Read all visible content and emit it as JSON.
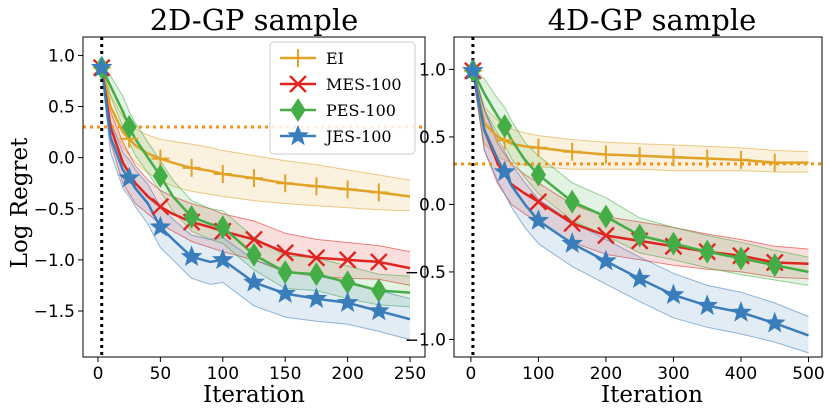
{
  "chart_data": [
    {
      "type": "line",
      "title": "2D-GP sample",
      "xlabel": "Iteration",
      "ylabel": "Log Regret",
      "xlim": [
        -12,
        262
      ],
      "ylim": [
        -1.95,
        1.18
      ],
      "xticks": [
        0,
        50,
        100,
        150,
        200,
        250
      ],
      "yticks": [
        1.0,
        0.5,
        0.0,
        -0.5,
        -1.0,
        -1.5
      ],
      "xtick_labels": [
        "0",
        "50",
        "100",
        "150",
        "200",
        "250"
      ],
      "ytick_labels": [
        "1.0",
        "0.5",
        "0.0",
        "−0.5",
        "−1.0",
        "−1.5"
      ],
      "vline_x": 3,
      "hline_y": 0.3,
      "legend": {
        "position": "top-right",
        "entries": [
          "EI",
          "MES-100",
          "PES-100",
          "JES-100"
        ]
      },
      "series": [
        {
          "name": "EI",
          "color": "#e0a326",
          "marker": "plus",
          "marker_x": [
            25,
            50,
            75,
            100,
            125,
            150,
            175,
            200,
            225
          ],
          "x": [
            3,
            10,
            20,
            30,
            40,
            50,
            60,
            75,
            90,
            100,
            125,
            150,
            175,
            200,
            225,
            250
          ],
          "mean": [
            0.88,
            0.5,
            0.25,
            0.12,
            0.04,
            -0.01,
            -0.05,
            -0.1,
            -0.13,
            -0.16,
            -0.2,
            -0.25,
            -0.28,
            -0.31,
            -0.34,
            -0.38
          ],
          "lower": [
            0.85,
            0.35,
            0.1,
            -0.05,
            -0.15,
            -0.22,
            -0.28,
            -0.33,
            -0.36,
            -0.38,
            -0.42,
            -0.45,
            -0.47,
            -0.49,
            -0.51,
            -0.52
          ],
          "upper": [
            0.91,
            0.62,
            0.4,
            0.28,
            0.22,
            0.18,
            0.16,
            0.13,
            0.1,
            0.07,
            0.02,
            -0.03,
            -0.07,
            -0.12,
            -0.17,
            -0.22
          ]
        },
        {
          "name": "MES-100",
          "color": "#e0241f",
          "marker": "x",
          "marker_x": [
            50,
            75,
            100,
            125,
            150,
            175,
            200,
            225
          ],
          "x": [
            3,
            10,
            20,
            30,
            40,
            50,
            60,
            75,
            90,
            100,
            125,
            150,
            175,
            200,
            225,
            250
          ],
          "mean": [
            0.88,
            0.3,
            -0.05,
            -0.25,
            -0.38,
            -0.48,
            -0.55,
            -0.63,
            -0.68,
            -0.72,
            -0.8,
            -0.93,
            -0.98,
            -1.0,
            -1.02,
            -1.08
          ],
          "lower": [
            0.85,
            0.15,
            -0.25,
            -0.45,
            -0.55,
            -0.65,
            -0.72,
            -0.82,
            -0.88,
            -0.92,
            -1.0,
            -1.12,
            -1.16,
            -1.18,
            -1.19,
            -1.25
          ],
          "upper": [
            0.91,
            0.45,
            0.15,
            -0.08,
            -0.22,
            -0.32,
            -0.38,
            -0.45,
            -0.5,
            -0.55,
            -0.62,
            -0.74,
            -0.8,
            -0.83,
            -0.86,
            -0.92
          ]
        },
        {
          "name": "PES-100",
          "color": "#45ad46",
          "marker": "diamond",
          "marker_x": [
            25,
            50,
            75,
            100,
            125,
            150,
            175,
            200,
            225
          ],
          "x": [
            3,
            10,
            20,
            25,
            30,
            40,
            50,
            60,
            75,
            90,
            100,
            125,
            150,
            175,
            200,
            225,
            250
          ],
          "mean": [
            0.88,
            0.7,
            0.45,
            0.3,
            0.18,
            0.0,
            -0.18,
            -0.38,
            -0.58,
            -0.65,
            -0.68,
            -0.95,
            -1.12,
            -1.14,
            -1.22,
            -1.3,
            -1.32
          ],
          "lower": [
            0.85,
            0.6,
            0.3,
            0.15,
            0.02,
            -0.15,
            -0.33,
            -0.52,
            -0.72,
            -0.8,
            -0.84,
            -1.1,
            -1.28,
            -1.3,
            -1.38,
            -1.44,
            -1.46
          ],
          "upper": [
            0.91,
            0.8,
            0.6,
            0.45,
            0.34,
            0.15,
            -0.03,
            -0.22,
            -0.42,
            -0.5,
            -0.52,
            -0.78,
            -0.96,
            -0.98,
            -1.06,
            -1.14,
            -1.16
          ]
        },
        {
          "name": "JES-100",
          "color": "#3a7dbb",
          "marker": "star",
          "marker_x": [
            25,
            50,
            75,
            100,
            125,
            150,
            175,
            200,
            225
          ],
          "x": [
            3,
            10,
            20,
            25,
            30,
            40,
            50,
            60,
            75,
            90,
            100,
            125,
            150,
            175,
            200,
            225,
            250
          ],
          "mean": [
            0.88,
            0.2,
            -0.12,
            -0.2,
            -0.3,
            -0.45,
            -0.68,
            -0.8,
            -0.97,
            -1.02,
            -1.0,
            -1.22,
            -1.33,
            -1.38,
            -1.42,
            -1.5,
            -1.58
          ],
          "lower": [
            0.85,
            0.05,
            -0.3,
            -0.38,
            -0.48,
            -0.65,
            -0.88,
            -1.0,
            -1.18,
            -1.24,
            -1.22,
            -1.45,
            -1.56,
            -1.6,
            -1.63,
            -1.7,
            -1.78
          ],
          "upper": [
            0.91,
            0.35,
            0.05,
            -0.02,
            -0.12,
            -0.26,
            -0.48,
            -0.6,
            -0.76,
            -0.8,
            -0.78,
            -1.0,
            -1.1,
            -1.16,
            -1.21,
            -1.3,
            -1.38
          ]
        }
      ]
    },
    {
      "type": "line",
      "title": "4D-GP sample",
      "xlabel": "Iteration",
      "ylabel": "",
      "xlim": [
        -25,
        520
      ],
      "ylim": [
        -1.13,
        1.24
      ],
      "xticks": [
        0,
        100,
        200,
        300,
        400,
        500
      ],
      "yticks": [
        1.0,
        0.5,
        0.0,
        -0.5,
        -1.0
      ],
      "xtick_labels": [
        "0",
        "100",
        "200",
        "300",
        "400",
        "500"
      ],
      "ytick_labels": [
        "1.0",
        "0.5",
        "0.0",
        "−0.5",
        "−1.0"
      ],
      "vline_x": 3,
      "hline_y": 0.3,
      "series": [
        {
          "name": "EI",
          "color": "#e0a326",
          "marker": "plus",
          "marker_x": [
            50,
            100,
            150,
            200,
            250,
            300,
            350,
            400,
            450
          ],
          "x": [
            3,
            20,
            40,
            60,
            80,
            100,
            150,
            200,
            250,
            300,
            350,
            400,
            450,
            500
          ],
          "mean": [
            0.99,
            0.6,
            0.5,
            0.45,
            0.43,
            0.42,
            0.39,
            0.37,
            0.36,
            0.35,
            0.34,
            0.33,
            0.31,
            0.31
          ],
          "lower": [
            0.97,
            0.45,
            0.35,
            0.31,
            0.29,
            0.28,
            0.26,
            0.26,
            0.26,
            0.25,
            0.25,
            0.25,
            0.24,
            0.24
          ],
          "upper": [
            1.01,
            0.72,
            0.62,
            0.56,
            0.53,
            0.51,
            0.48,
            0.46,
            0.45,
            0.44,
            0.43,
            0.42,
            0.4,
            0.39
          ]
        },
        {
          "name": "MES-100",
          "color": "#e0241f",
          "marker": "x",
          "marker_x": [
            100,
            150,
            200,
            250,
            300,
            350,
            400,
            450
          ],
          "x": [
            3,
            20,
            40,
            60,
            80,
            100,
            150,
            200,
            250,
            300,
            350,
            400,
            450,
            500
          ],
          "mean": [
            0.99,
            0.55,
            0.3,
            0.15,
            0.08,
            0.02,
            -0.14,
            -0.23,
            -0.27,
            -0.31,
            -0.35,
            -0.38,
            -0.43,
            -0.44
          ],
          "lower": [
            0.97,
            0.4,
            0.15,
            0.0,
            -0.07,
            -0.13,
            -0.28,
            -0.37,
            -0.41,
            -0.45,
            -0.48,
            -0.5,
            -0.54,
            -0.55
          ],
          "upper": [
            1.01,
            0.7,
            0.45,
            0.3,
            0.22,
            0.16,
            0.0,
            -0.09,
            -0.13,
            -0.17,
            -0.22,
            -0.26,
            -0.31,
            -0.33
          ]
        },
        {
          "name": "PES-100",
          "color": "#45ad46",
          "marker": "diamond",
          "marker_x": [
            50,
            100,
            150,
            200,
            250,
            300,
            350,
            400,
            450
          ],
          "x": [
            3,
            20,
            40,
            50,
            60,
            80,
            100,
            150,
            200,
            250,
            300,
            350,
            400,
            450,
            500
          ],
          "mean": [
            0.99,
            0.82,
            0.65,
            0.58,
            0.48,
            0.33,
            0.22,
            0.02,
            -0.09,
            -0.23,
            -0.29,
            -0.35,
            -0.4,
            -0.45,
            -0.5
          ],
          "lower": [
            0.97,
            0.7,
            0.52,
            0.44,
            0.34,
            0.2,
            0.08,
            -0.12,
            -0.23,
            -0.36,
            -0.41,
            -0.47,
            -0.52,
            -0.56,
            -0.6
          ],
          "upper": [
            1.01,
            0.93,
            0.78,
            0.72,
            0.62,
            0.46,
            0.36,
            0.16,
            0.05,
            -0.1,
            -0.17,
            -0.23,
            -0.28,
            -0.34,
            -0.39
          ]
        },
        {
          "name": "JES-100",
          "color": "#3a7dbb",
          "marker": "star",
          "marker_x": [
            50,
            100,
            150,
            200,
            250,
            300,
            350,
            400,
            450
          ],
          "x": [
            3,
            20,
            40,
            50,
            60,
            80,
            100,
            150,
            200,
            250,
            300,
            350,
            400,
            450,
            500
          ],
          "mean": [
            0.99,
            0.55,
            0.33,
            0.24,
            0.14,
            0.0,
            -0.12,
            -0.29,
            -0.42,
            -0.55,
            -0.67,
            -0.75,
            -0.8,
            -0.88,
            -0.97
          ],
          "lower": [
            0.97,
            0.4,
            0.17,
            0.08,
            -0.02,
            -0.17,
            -0.29,
            -0.46,
            -0.59,
            -0.72,
            -0.84,
            -0.91,
            -0.96,
            -1.02,
            -1.1
          ],
          "upper": [
            1.01,
            0.7,
            0.48,
            0.4,
            0.3,
            0.16,
            0.04,
            -0.13,
            -0.26,
            -0.39,
            -0.51,
            -0.6,
            -0.65,
            -0.73,
            -0.83
          ]
        }
      ]
    }
  ]
}
